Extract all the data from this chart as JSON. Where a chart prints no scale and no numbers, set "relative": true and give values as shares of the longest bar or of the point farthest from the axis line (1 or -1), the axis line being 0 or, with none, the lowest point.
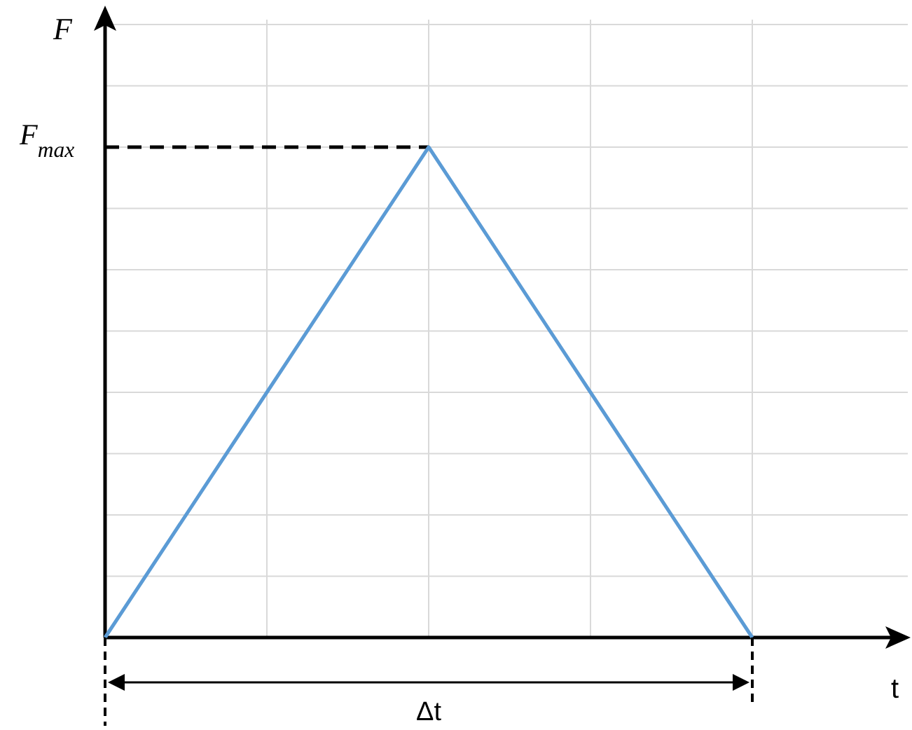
{
  "chart_data": {
    "type": "line",
    "relative": true,
    "categories": [
      null,
      null,
      null,
      null,
      null
    ],
    "values": [
      0,
      0.5,
      1,
      0.5,
      0
    ],
    "color": "#5b9bd5",
    "xlabel": "t",
    "ylabel": "F",
    "grid": true,
    "ref_lines": [
      {
        "axis": "y",
        "value": 1,
        "label": "F$_{max}$",
        "line_style": "dashed",
        "color": "#000000"
      }
    ],
    "annotations": [
      "Δt"
    ]
  }
}
